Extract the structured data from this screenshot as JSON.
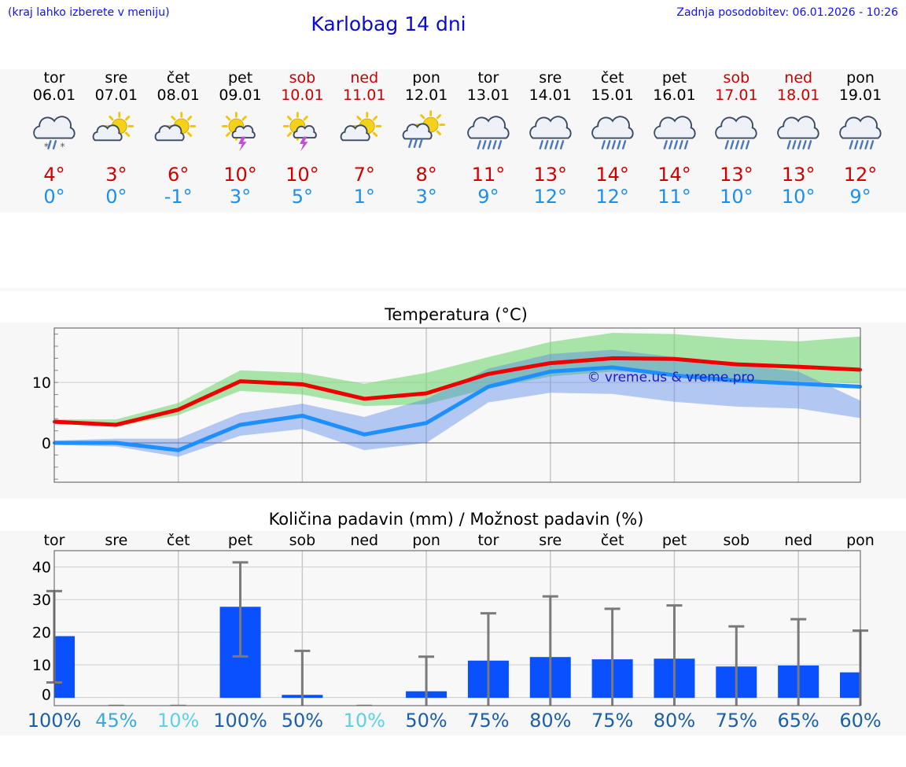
{
  "header": {
    "hint": "(kraj lahko izberete v meniju)",
    "title": "Karlobag 14 dni",
    "updated": "Zadnja posodobitev: 06.01.2026 - 10:26"
  },
  "colors": {
    "max": "#ee0000",
    "min": "#1e8fff",
    "bar": "#0a50ff",
    "weekend": "#cc0000",
    "link": "#1010ff"
  },
  "days": [
    {
      "name": "tor",
      "date": "06.01",
      "icon": "cloud-sleet-icon",
      "tmax": "4°",
      "tmin": "0°",
      "weekend": false
    },
    {
      "name": "sre",
      "date": "07.01",
      "icon": "sun-cloud-icon",
      "tmax": "3°",
      "tmin": "0°",
      "weekend": false
    },
    {
      "name": "čet",
      "date": "08.01",
      "icon": "sun-cloud-icon",
      "tmax": "6°",
      "tmin": "-1°",
      "weekend": false
    },
    {
      "name": "pet",
      "date": "09.01",
      "icon": "sun-thunder-icon",
      "tmax": "10°",
      "tmin": "3°",
      "weekend": false
    },
    {
      "name": "sob",
      "date": "10.01",
      "icon": "sun-thunder-icon",
      "tmax": "10°",
      "tmin": "5°",
      "weekend": true
    },
    {
      "name": "ned",
      "date": "11.01",
      "icon": "sun-cloud-icon",
      "tmax": "7°",
      "tmin": "1°",
      "weekend": true
    },
    {
      "name": "pon",
      "date": "12.01",
      "icon": "sun-rain-icon",
      "tmax": "8°",
      "tmin": "3°",
      "weekend": false
    },
    {
      "name": "tor",
      "date": "13.01",
      "icon": "cloud-rain-icon",
      "tmax": "11°",
      "tmin": "9°",
      "weekend": false
    },
    {
      "name": "sre",
      "date": "14.01",
      "icon": "cloud-rain-icon",
      "tmax": "13°",
      "tmin": "12°",
      "weekend": false
    },
    {
      "name": "čet",
      "date": "15.01",
      "icon": "cloud-rain-icon",
      "tmax": "14°",
      "tmin": "12°",
      "weekend": false
    },
    {
      "name": "pet",
      "date": "16.01",
      "icon": "cloud-rain-icon",
      "tmax": "14°",
      "tmin": "11°",
      "weekend": false
    },
    {
      "name": "sob",
      "date": "17.01",
      "icon": "cloud-rain-icon",
      "tmax": "13°",
      "tmin": "10°",
      "weekend": true
    },
    {
      "name": "ned",
      "date": "18.01",
      "icon": "cloud-rain-icon",
      "tmax": "13°",
      "tmin": "10°",
      "weekend": true
    },
    {
      "name": "pon",
      "date": "19.01",
      "icon": "cloud-rain-icon",
      "tmax": "12°",
      "tmin": "9°",
      "weekend": false
    }
  ],
  "chart_data": [
    {
      "type": "line",
      "title": "Temperatura (°C)",
      "watermark": "© vreme.us & vreme.pro",
      "x": [
        0,
        1,
        2,
        3,
        4,
        5,
        6,
        7,
        8,
        9,
        10,
        11,
        12,
        13
      ],
      "ylim": [
        -6.5,
        19
      ],
      "yticks": [
        0,
        10
      ],
      "series": [
        {
          "name": "max",
          "values": [
            3.5,
            3.0,
            5.5,
            10.2,
            9.7,
            7.3,
            8.2,
            11.4,
            13.2,
            14.0,
            13.9,
            13.0,
            12.6,
            12.1
          ]
        },
        {
          "name": "min",
          "values": [
            0,
            0,
            -1.2,
            3.0,
            4.5,
            1.4,
            3.3,
            9.3,
            11.8,
            12.5,
            11.2,
            10.3,
            9.8,
            9.3
          ]
        }
      ],
      "bands": [
        {
          "name": "max-range",
          "low": [
            3.3,
            2.7,
            4.6,
            8.6,
            8.0,
            6.1,
            6.4,
            9.0,
            11.0,
            11.8,
            11.6,
            10.5,
            10.2,
            9.8
          ],
          "high": [
            3.9,
            3.9,
            6.6,
            12.0,
            11.6,
            9.8,
            11.6,
            14.2,
            16.7,
            18.2,
            18.0,
            17.2,
            16.8,
            17.6
          ]
        },
        {
          "name": "min-range",
          "low": [
            -0.3,
            -0.6,
            -2.3,
            1.2,
            2.3,
            -1.2,
            0,
            6.7,
            8.3,
            8.1,
            6.8,
            6.0,
            5.7,
            4.1
          ],
          "high": [
            0.4,
            0.7,
            0.7,
            4.9,
            6.5,
            4.3,
            7.3,
            12.3,
            14.7,
            15.4,
            14.2,
            13.0,
            11.8,
            7.0
          ]
        }
      ]
    },
    {
      "type": "bar",
      "title": "Količina padavin (mm) / Možnost padavin (%)",
      "categories": [
        "tor",
        "sre",
        "čet",
        "pet",
        "sob",
        "ned",
        "pon",
        "tor",
        "sre",
        "čet",
        "pet",
        "sob",
        "ned",
        "pon"
      ],
      "values": [
        18.8,
        0,
        0,
        27.8,
        0.8,
        0,
        1.9,
        11.3,
        12.4,
        11.7,
        11.9,
        9.5,
        9.8,
        7.7
      ],
      "errors_low": [
        4.6,
        0,
        0,
        12.6,
        0,
        0,
        0,
        0,
        0,
        0,
        0,
        0,
        0,
        0
      ],
      "errors_high": [
        32.6,
        0,
        0,
        41.4,
        14.3,
        0,
        12.5,
        25.8,
        31.0,
        27.2,
        28.2,
        21.8,
        24.0,
        20.5
      ],
      "ylim": [
        -2.5,
        45
      ],
      "yticks": [
        0,
        10,
        20,
        30,
        40
      ],
      "percents": [
        "100%",
        "45%",
        "10%",
        "100%",
        "50%",
        "10%",
        "50%",
        "75%",
        "80%",
        "75%",
        "80%",
        "75%",
        "65%",
        "60%"
      ],
      "percent_colors": [
        "#1a5fa8",
        "#3aa8e0",
        "#5ed0e8",
        "#1a5fa8",
        "#1a5fa8",
        "#5ed0e8",
        "#1a5fa8",
        "#1a5fa8",
        "#1a5fa8",
        "#1a5fa8",
        "#1a5fa8",
        "#1a5fa8",
        "#1a5fa8",
        "#1a5fa8"
      ]
    }
  ]
}
